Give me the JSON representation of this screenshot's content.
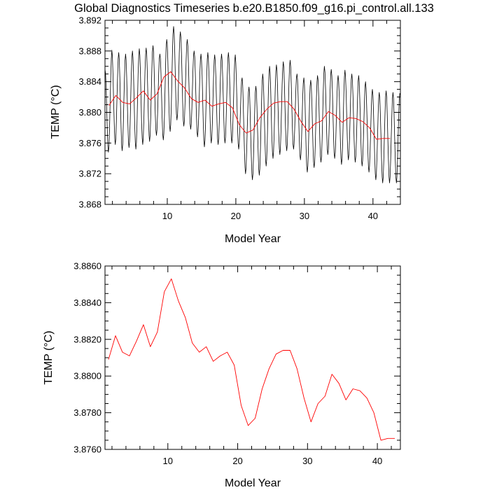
{
  "figure": {
    "title": "Global Diagnostics Timeseries b.e20.B1850.f09_g16.pi_control.all.133"
  },
  "chart_data": [
    {
      "type": "line",
      "title": "Global Diagnostics Timeseries b.e20.B1850.f09_g16.pi_control.all.133",
      "xlabel": "Model Year",
      "ylabel": "TEMP (°C)",
      "xlim": [
        0.917,
        44.0
      ],
      "ylim": [
        3.868,
        3.892
      ],
      "xticks": [
        10,
        20,
        30,
        40
      ],
      "xtick_labels": [
        "10",
        "20",
        "30",
        "40"
      ],
      "yticks": [
        3.868,
        3.872,
        3.876,
        3.88,
        3.884,
        3.888,
        3.892
      ],
      "ytick_labels": [
        "3.868",
        "3.872",
        "3.876",
        "3.880",
        "3.884",
        "3.888",
        "3.892"
      ],
      "grid": false,
      "monthly_peak_trough": [
        [
          3.8856,
          3.8748
        ],
        [
          3.8881,
          3.8758
        ],
        [
          3.8878,
          3.875
        ],
        [
          3.8876,
          3.8754
        ],
        [
          3.888,
          3.8752
        ],
        [
          3.8883,
          3.8758
        ],
        [
          3.8884,
          3.8762
        ],
        [
          3.8887,
          3.877
        ],
        [
          3.8876,
          3.8764
        ],
        [
          3.8895,
          3.8775
        ],
        [
          3.8912,
          3.879
        ],
        [
          3.8905,
          3.8782
        ],
        [
          3.8895,
          3.8778
        ],
        [
          3.888,
          3.8768
        ],
        [
          3.8876,
          3.8755
        ],
        [
          3.8878,
          3.876
        ],
        [
          3.8875,
          3.8758
        ],
        [
          3.8876,
          3.876
        ],
        [
          3.8878,
          3.876
        ],
        [
          3.8875,
          3.8752
        ],
        [
          3.8845,
          3.872
        ],
        [
          3.8833,
          3.8712
        ],
        [
          3.8834,
          3.8718
        ],
        [
          3.885,
          3.873
        ],
        [
          3.886,
          3.874
        ],
        [
          3.8862,
          3.8745
        ],
        [
          3.8866,
          3.875
        ],
        [
          3.8868,
          3.8752
        ],
        [
          3.885,
          3.8738
        ],
        [
          3.8845,
          3.8722
        ],
        [
          3.8842,
          3.8728
        ],
        [
          3.8848,
          3.8735
        ],
        [
          3.886,
          3.8745
        ],
        [
          3.8856,
          3.874
        ],
        [
          3.8848,
          3.8732
        ],
        [
          3.8855,
          3.8738
        ],
        [
          3.885,
          3.8735
        ],
        [
          3.8848,
          3.873
        ],
        [
          3.884,
          3.8722
        ],
        [
          3.883,
          3.8712
        ],
        [
          3.8826,
          3.8708
        ],
        [
          3.8828,
          3.8708
        ],
        [
          3.8826,
          3.8708
        ],
        [
          3.8825,
          3.871
        ]
      ],
      "series": [
        {
          "color": "#000000",
          "values_from": "monthly_peak_trough"
        },
        {
          "color": "#ff0000",
          "x": [
            1.5,
            2.5,
            3.5,
            4.5,
            5.5,
            6.5,
            7.5,
            8.5,
            9.5,
            10.5,
            11.5,
            12.5,
            13.5,
            14.5,
            15.5,
            16.5,
            17.5,
            18.5,
            19.5,
            20.5,
            21.5,
            22.5,
            23.5,
            24.5,
            25.5,
            26.5,
            27.5,
            28.5,
            29.5,
            30.5,
            31.5,
            32.5,
            33.5,
            34.5,
            35.5,
            36.5,
            37.5,
            38.5,
            39.5,
            40.5,
            41.5,
            42.5
          ],
          "values": [
            3.8809,
            3.8822,
            3.8813,
            3.8811,
            3.8819,
            3.8828,
            3.8816,
            3.8824,
            3.8846,
            3.8853,
            3.8841,
            3.8832,
            3.8818,
            3.8813,
            3.8816,
            3.8808,
            3.8811,
            3.8813,
            3.8806,
            3.8784,
            3.8773,
            3.8777,
            3.8793,
            3.8804,
            3.8812,
            3.8814,
            3.8814,
            3.8804,
            3.8788,
            3.8775,
            3.8785,
            3.8789,
            3.8801,
            3.8796,
            3.8787,
            3.8793,
            3.8792,
            3.8788,
            3.878,
            3.8765,
            3.8766,
            3.8766
          ]
        }
      ]
    },
    {
      "type": "line",
      "title": "",
      "xlabel": "Model Year",
      "ylabel": "TEMP (°C)",
      "xlim": [
        1.0,
        43.3
      ],
      "ylim": [
        3.876,
        3.886
      ],
      "xticks": [
        10,
        20,
        30,
        40
      ],
      "xtick_labels": [
        "10",
        "20",
        "30",
        "40"
      ],
      "yticks": [
        3.876,
        3.878,
        3.88,
        3.882,
        3.884,
        3.886
      ],
      "ytick_labels": [
        "3.8760",
        "3.8780",
        "3.8800",
        "3.8820",
        "3.8840",
        "3.8860"
      ],
      "grid": false,
      "series": [
        {
          "color": "#ff0000",
          "x": [
            1.5,
            2.5,
            3.5,
            4.5,
            5.5,
            6.5,
            7.5,
            8.5,
            9.5,
            10.5,
            11.5,
            12.5,
            13.5,
            14.5,
            15.5,
            16.5,
            17.5,
            18.5,
            19.5,
            20.5,
            21.5,
            22.5,
            23.5,
            24.5,
            25.5,
            26.5,
            27.5,
            28.5,
            29.5,
            30.5,
            31.5,
            32.5,
            33.5,
            34.5,
            35.5,
            36.5,
            37.5,
            38.5,
            39.5,
            40.5,
            41.5,
            42.5
          ],
          "values": [
            3.8809,
            3.8822,
            3.8813,
            3.8811,
            3.8819,
            3.8828,
            3.8816,
            3.8824,
            3.8846,
            3.8853,
            3.8841,
            3.8832,
            3.8818,
            3.8813,
            3.8816,
            3.8808,
            3.8811,
            3.8813,
            3.8806,
            3.8784,
            3.8773,
            3.8777,
            3.8793,
            3.8804,
            3.8812,
            3.8814,
            3.8814,
            3.8804,
            3.8788,
            3.8775,
            3.8785,
            3.8789,
            3.8801,
            3.8796,
            3.8787,
            3.8793,
            3.8792,
            3.8788,
            3.878,
            3.8765,
            3.8766,
            3.8766
          ]
        }
      ]
    }
  ]
}
